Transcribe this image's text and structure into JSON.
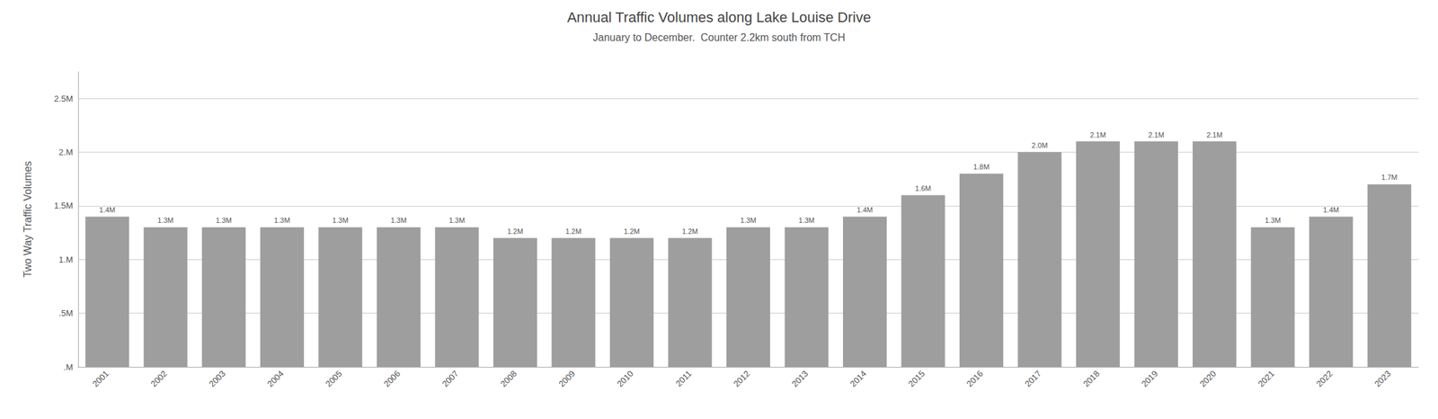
{
  "chart_data": {
    "type": "bar",
    "title": "Annual Traffic Volumes along Lake Louise Drive",
    "subtitle": "January to December.  Counter 2.2km south from TCH",
    "ylabel": "Two Way Traffic Volumes",
    "categories": [
      "2001",
      "2002",
      "2003",
      "2004",
      "2005",
      "2006",
      "2007",
      "2008",
      "2009",
      "2010",
      "2011",
      "2012",
      "2013",
      "2014",
      "2015",
      "2016",
      "2017",
      "2018",
      "2019",
      "2020",
      "2021",
      "2022",
      "2023"
    ],
    "values": [
      1400000,
      1300000,
      1300000,
      1300000,
      1300000,
      1300000,
      1300000,
      1200000,
      1200000,
      1200000,
      1200000,
      1300000,
      1300000,
      1400000,
      1600000,
      1800000,
      2000000,
      2100000,
      2100000,
      2100000,
      1300000,
      1400000,
      1700000
    ],
    "value_labels": [
      "1.4M",
      "1.3M",
      "1.3M",
      "1.3M",
      "1.3M",
      "1.3M",
      "1.3M",
      "1.2M",
      "1.2M",
      "1.2M",
      "1.2M",
      "1.3M",
      "1.3M",
      "1.4M",
      "1.6M",
      "1.8M",
      "2.0M",
      "2.1M",
      "2.1M",
      "2.1M",
      "1.3M",
      "1.4M",
      "1.7M"
    ],
    "data_labels": true,
    "color": "#9e9e9e",
    "ylim": [
      0,
      2750000
    ],
    "yticks": [
      {
        "value": 0,
        "label": ".M"
      },
      {
        "value": 500000,
        "label": ".5M"
      },
      {
        "value": 1000000,
        "label": "1.M"
      },
      {
        "value": 1500000,
        "label": "1.5M"
      },
      {
        "value": 2000000,
        "label": "2.M"
      },
      {
        "value": 2500000,
        "label": "2.5M"
      }
    ],
    "grid": true
  }
}
